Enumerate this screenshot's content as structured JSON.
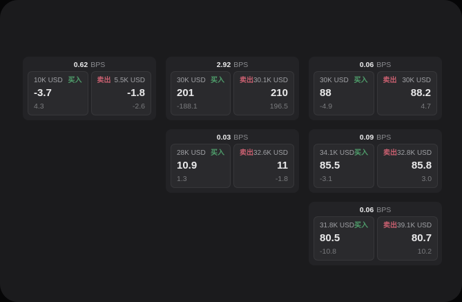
{
  "labels": {
    "bps": "BPS",
    "buy": "买入",
    "sell": "卖出"
  },
  "colors": {
    "buy-green": "#4f9d6b",
    "sell-red": "#c75f6f",
    "bg-panel": "#1b1b1d",
    "bg-card": "#232326",
    "bg-tile": "#2a2a2d"
  },
  "cards": [
    {
      "bps": "0.62",
      "buy": {
        "amount": "10K USD",
        "value": "-3.7",
        "sub": "4.3"
      },
      "sell": {
        "amount": "5.5K USD",
        "value": "-1.8",
        "sub": "-2.6"
      }
    },
    {
      "bps": "2.92",
      "buy": {
        "amount": "30K USD",
        "value": "201",
        "sub": "-188.1"
      },
      "sell": {
        "amount": "30.1K USD",
        "value": "210",
        "sub": "196.5"
      }
    },
    {
      "bps": "0.06",
      "buy": {
        "amount": "30K USD",
        "value": "88",
        "sub": "-4.9"
      },
      "sell": {
        "amount": "30K USD",
        "value": "88.2",
        "sub": "4.7"
      }
    },
    {
      "bps": "0.03",
      "buy": {
        "amount": "28K USD",
        "value": "10.9",
        "sub": "1.3"
      },
      "sell": {
        "amount": "32.6K USD",
        "value": "11",
        "sub": "-1.8"
      }
    },
    {
      "bps": "0.09",
      "buy": {
        "amount": "34.1K USD",
        "value": "85.5",
        "sub": "-3.1"
      },
      "sell": {
        "amount": "32.8K USD",
        "value": "85.8",
        "sub": "3.0"
      }
    },
    {
      "bps": "0.06",
      "buy": {
        "amount": "31.8K USD",
        "value": "80.5",
        "sub": "-10.8"
      },
      "sell": {
        "amount": "39.1K USD",
        "value": "80.7",
        "sub": "10.2"
      }
    }
  ]
}
